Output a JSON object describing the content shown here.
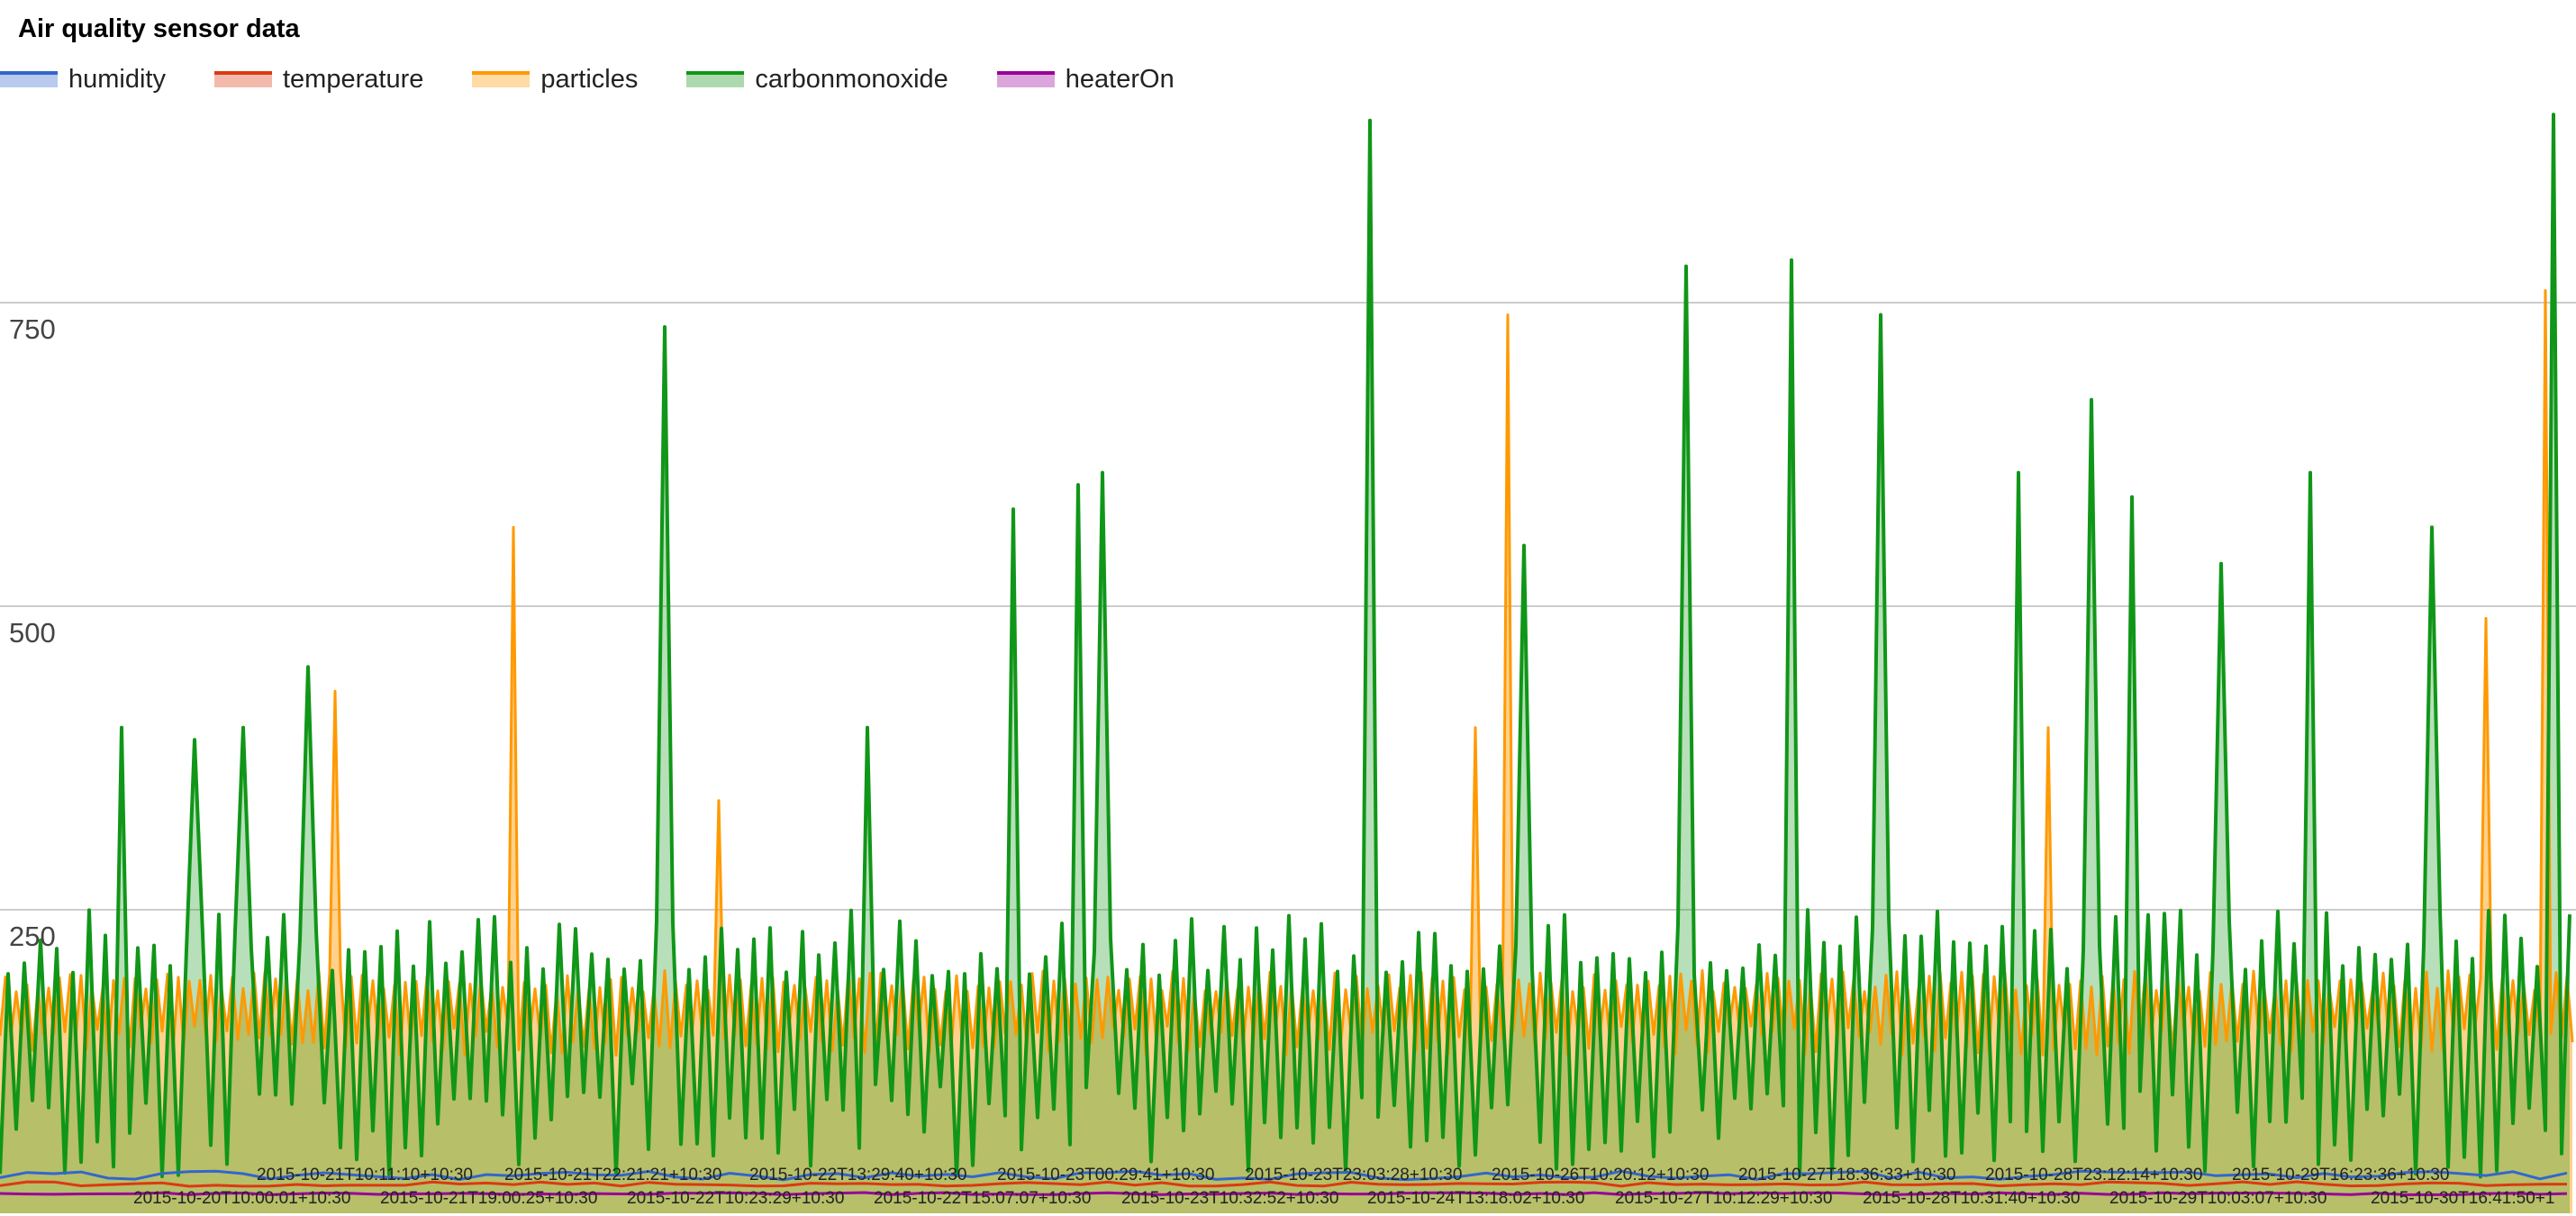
{
  "chart_data": {
    "type": "area",
    "title": "Air quality sensor data",
    "xlabel": "",
    "ylabel": "",
    "ylim": [
      -90,
      900
    ],
    "grid": true,
    "legend_position": "top-left",
    "yticks": [
      "250",
      "500",
      "750"
    ],
    "series": [
      {
        "name": "humidity",
        "color": "#3366cc"
      },
      {
        "name": "temperature",
        "color": "#dc3912"
      },
      {
        "name": "particles",
        "color": "#ff9900"
      },
      {
        "name": "carbonmonoxide",
        "color": "#109618"
      },
      {
        "name": "heaterOn",
        "color": "#990099"
      }
    ],
    "x_labels_row1": [
      "2015-10-21T10:11:10+10:30",
      "2015-10-21T22:21:21+10:30",
      "2015-10-22T13:29:40+10:30",
      "2015-10-23T00:29:41+10:30",
      "2015-10-23T23:03:28+10:30",
      "2015-10-26T10:20:12+10:30",
      "2015-10-27T18:36:33+10:30",
      "2015-10-28T23:12:14+10:30",
      "2015-10-29T16:23:36+10:30"
    ],
    "x_labels_row2": [
      "2015-10-20T10:00:01+10:30",
      "2015-10-21T19:00:25+10:30",
      "2015-10-22T10:23:29+10:30",
      "2015-10-22T15:07:07+10:30",
      "2015-10-23T10:32:52+10:30",
      "2015-10-24T13:18:02+10:30",
      "2015-10-27T10:12:29+10:30",
      "2015-10-28T10:31:40+10:30",
      "2015-10-29T10:03:07+10:30",
      "2015-10-30T16:41:50+1"
    ],
    "carbonmonoxide_peaks": [
      {
        "x": "2015-10-20T16:00",
        "y": 400
      },
      {
        "x": "2015-10-20T23:00",
        "y": 390
      },
      {
        "x": "2015-10-21T04:00",
        "y": 400
      },
      {
        "x": "2015-10-21T10:30",
        "y": 450
      },
      {
        "x": "2015-10-22T22:00",
        "y": 730
      },
      {
        "x": "2015-10-23T18:00",
        "y": 400
      },
      {
        "x": "2015-10-24T08:00",
        "y": 580
      },
      {
        "x": "2015-10-24T15:00",
        "y": 600
      },
      {
        "x": "2015-10-24T17:00",
        "y": 610
      },
      {
        "x": "2015-10-25T20:00",
        "y": 900
      },
      {
        "x": "2015-10-26T10:30",
        "y": 550
      },
      {
        "x": "2015-10-27T03:00",
        "y": 780
      },
      {
        "x": "2015-10-27T13:00",
        "y": 785
      },
      {
        "x": "2015-10-27T22:00",
        "y": 740
      },
      {
        "x": "2015-10-28T12:00",
        "y": 610
      },
      {
        "x": "2015-10-28T19:00",
        "y": 670
      },
      {
        "x": "2015-10-28T23:00",
        "y": 590
      },
      {
        "x": "2015-10-29T08:00",
        "y": 535
      },
      {
        "x": "2015-10-29T17:00",
        "y": 610
      },
      {
        "x": "2015-10-30T05:00",
        "y": 565
      },
      {
        "x": "2015-10-30T17:00",
        "y": 905
      }
    ],
    "particles_peaks": [
      {
        "x": "2015-10-21T13:00",
        "y": 430
      },
      {
        "x": "2015-10-22T07:00",
        "y": 565
      },
      {
        "x": "2015-10-23T03:00",
        "y": 340
      },
      {
        "x": "2015-10-26T06:00",
        "y": 400
      },
      {
        "x": "2015-10-26T09:00",
        "y": 740
      },
      {
        "x": "2015-10-28T15:00",
        "y": 400
      },
      {
        "x": "2015-10-30T10:00",
        "y": 490
      },
      {
        "x": "2015-10-30T16:00",
        "y": 760
      }
    ],
    "typical_ranges": {
      "carbonmonoxide": [
        30,
        250
      ],
      "particles": [
        130,
        200
      ],
      "humidity": [
        -95,
        -75
      ],
      "temperature": [
        -100,
        -90
      ],
      "heaterOn": [
        -100,
        -95
      ]
    }
  }
}
